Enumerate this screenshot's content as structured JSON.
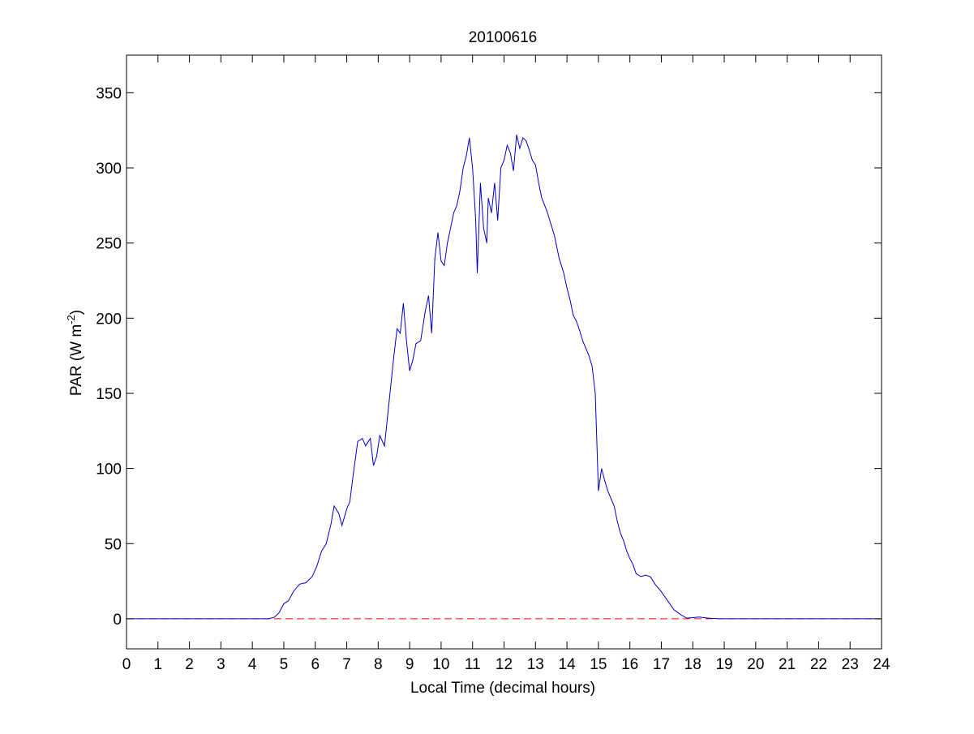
{
  "chart_data": {
    "type": "line",
    "title": "20100616",
    "xlabel": "Local Time (decimal hours)",
    "ylabel": {
      "main": "PAR (W m",
      "superscript": "-2",
      "close": ")"
    },
    "xlim": [
      0,
      24
    ],
    "ylim": [
      -20,
      375
    ],
    "xticks": [
      0,
      1,
      2,
      3,
      4,
      5,
      6,
      7,
      8,
      9,
      10,
      11,
      12,
      13,
      14,
      15,
      16,
      17,
      18,
      19,
      20,
      21,
      22,
      23,
      24
    ],
    "yticks": [
      0,
      50,
      100,
      150,
      200,
      250,
      300,
      350
    ],
    "grid": false,
    "legend": "none",
    "series": [
      {
        "color": "#0000cc",
        "style": "solid",
        "x": [
          0,
          4.5,
          4.7,
          4.85,
          5.0,
          5.15,
          5.3,
          5.5,
          5.7,
          5.9,
          6.05,
          6.2,
          6.35,
          6.5,
          6.6,
          6.75,
          6.85,
          7.0,
          7.1,
          7.2,
          7.35,
          7.5,
          7.6,
          7.75,
          7.85,
          7.95,
          8.05,
          8.2,
          8.35,
          8.5,
          8.6,
          8.7,
          8.8,
          8.9,
          9.0,
          9.1,
          9.2,
          9.35,
          9.5,
          9.6,
          9.7,
          9.8,
          9.9,
          10.0,
          10.1,
          10.2,
          10.3,
          10.4,
          10.5,
          10.6,
          10.7,
          10.8,
          10.9,
          11.0,
          11.1,
          11.15,
          11.25,
          11.35,
          11.45,
          11.5,
          11.6,
          11.7,
          11.8,
          11.9,
          12.0,
          12.1,
          12.2,
          12.3,
          12.4,
          12.5,
          12.6,
          12.7,
          12.8,
          12.9,
          13.0,
          13.1,
          13.2,
          13.35,
          13.5,
          13.6,
          13.75,
          13.9,
          14.0,
          14.1,
          14.2,
          14.3,
          14.4,
          14.5,
          14.6,
          14.7,
          14.8,
          14.9,
          15.0,
          15.1,
          15.2,
          15.3,
          15.4,
          15.5,
          15.6,
          15.7,
          15.8,
          15.9,
          16.0,
          16.1,
          16.2,
          16.35,
          16.5,
          16.65,
          16.8,
          17.0,
          17.2,
          17.4,
          17.6,
          17.8,
          18.0,
          18.2,
          18.4,
          18.6,
          18.8,
          19.0,
          19.2,
          19.4,
          19.6,
          19.8,
          20.0,
          24
        ],
        "y": [
          0,
          0,
          1,
          4,
          10,
          12,
          18,
          23,
          24,
          28,
          35,
          45,
          50,
          63,
          75,
          70,
          62,
          73,
          78,
          95,
          118,
          120,
          115,
          120,
          102,
          108,
          122,
          115,
          145,
          175,
          193,
          190,
          210,
          185,
          165,
          172,
          183,
          185,
          205,
          215,
          190,
          240,
          257,
          238,
          235,
          250,
          260,
          270,
          275,
          285,
          300,
          308,
          320,
          300,
          265,
          230,
          290,
          260,
          250,
          280,
          270,
          290,
          265,
          300,
          305,
          315,
          310,
          298,
          322,
          313,
          320,
          318,
          312,
          305,
          302,
          290,
          280,
          272,
          262,
          255,
          240,
          230,
          220,
          212,
          202,
          198,
          192,
          185,
          180,
          175,
          168,
          150,
          85,
          100,
          92,
          85,
          80,
          75,
          65,
          57,
          52,
          45,
          40,
          36,
          30,
          28,
          29,
          28,
          23,
          18,
          12,
          6,
          3,
          0.5,
          0.8,
          1.2,
          0.6,
          0.3,
          0.1,
          0,
          0,
          0,
          0,
          0,
          0,
          0
        ]
      },
      {
        "color": "#ff0000",
        "style": "dashed",
        "x": [
          0,
          24
        ],
        "y": [
          0,
          0
        ]
      }
    ]
  }
}
